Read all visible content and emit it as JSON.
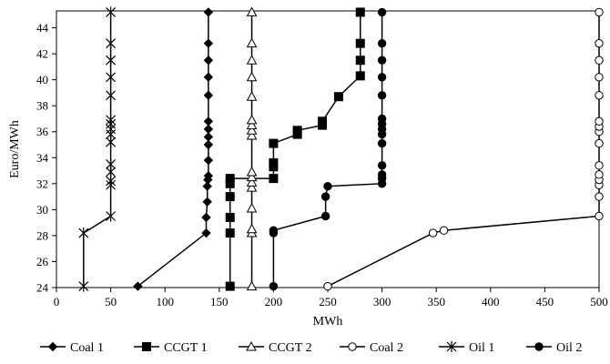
{
  "chart_data": {
    "type": "line",
    "title": "",
    "xlabel": "MWh",
    "ylabel": "Euro/MWh",
    "xlim": [
      0,
      500
    ],
    "ylim": [
      24,
      45.3
    ],
    "x_ticks": [
      0,
      50,
      100,
      150,
      200,
      250,
      300,
      350,
      400,
      450,
      500
    ],
    "y_ticks": [
      24,
      26,
      28,
      30,
      32,
      34,
      36,
      38,
      40,
      42,
      44
    ],
    "grid": false,
    "legend_position": "bottom",
    "series": [
      {
        "name": "Coal 1",
        "marker": "diamond",
        "points": [
          [
            75,
            24.1
          ],
          [
            138,
            28.2
          ],
          [
            138,
            29.4
          ],
          [
            139,
            30.6
          ],
          [
            139,
            31.8
          ],
          [
            139.5,
            32.3
          ],
          [
            140,
            32.6
          ],
          [
            140,
            33.8
          ],
          [
            140,
            35.0
          ],
          [
            140,
            35.6
          ],
          [
            140,
            36.2
          ],
          [
            140,
            36.8
          ],
          [
            140,
            38.8
          ],
          [
            140,
            40.2
          ],
          [
            140,
            41.5
          ],
          [
            140,
            42.8
          ],
          [
            140,
            45.2
          ]
        ]
      },
      {
        "name": "CCGT 1",
        "marker": "square",
        "points": [
          [
            160,
            24.1
          ],
          [
            160,
            28.2
          ],
          [
            160,
            29.4
          ],
          [
            160,
            31.0
          ],
          [
            160,
            32.0
          ],
          [
            160,
            32.4
          ],
          [
            200,
            32.4
          ],
          [
            200,
            33.3
          ],
          [
            200,
            33.6
          ],
          [
            200,
            35.1
          ],
          [
            222,
            35.8
          ],
          [
            222,
            36.1
          ],
          [
            245,
            36.5
          ],
          [
            245,
            36.8
          ],
          [
            260,
            38.7
          ],
          [
            280,
            40.3
          ],
          [
            280,
            41.5
          ],
          [
            280,
            42.8
          ],
          [
            280,
            45.2
          ]
        ]
      },
      {
        "name": "CCGT 2",
        "marker": "triangle",
        "points": [
          [
            180,
            24.1
          ],
          [
            180,
            28.2
          ],
          [
            180,
            28.5
          ],
          [
            180,
            30.1
          ],
          [
            180,
            31.7
          ],
          [
            180,
            32.1
          ],
          [
            180,
            32.5
          ],
          [
            180,
            32.9
          ],
          [
            180,
            35.7
          ],
          [
            180,
            36.1
          ],
          [
            180,
            36.5
          ],
          [
            180,
            36.9
          ],
          [
            180,
            38.7
          ],
          [
            180,
            40.2
          ],
          [
            180,
            41.5
          ],
          [
            180,
            42.8
          ],
          [
            180,
            45.2
          ]
        ]
      },
      {
        "name": "Coal 2",
        "marker": "circle-open",
        "points": [
          [
            250,
            24.1
          ],
          [
            347,
            28.2
          ],
          [
            357,
            28.4
          ],
          [
            500,
            29.5
          ],
          [
            500,
            31.0
          ],
          [
            500,
            31.9
          ],
          [
            500,
            32.3
          ],
          [
            500,
            32.7
          ],
          [
            500,
            33.4
          ],
          [
            500,
            35.1
          ],
          [
            500,
            36.0
          ],
          [
            500,
            36.4
          ],
          [
            500,
            36.8
          ],
          [
            500,
            38.8
          ],
          [
            500,
            40.2
          ],
          [
            500,
            41.5
          ],
          [
            500,
            42.8
          ],
          [
            500,
            45.2
          ]
        ]
      },
      {
        "name": "Oil 1",
        "marker": "star",
        "points": [
          [
            25,
            24.1
          ],
          [
            25,
            28.2
          ],
          [
            50,
            29.5
          ],
          [
            50,
            31.9
          ],
          [
            50,
            32.2
          ],
          [
            50,
            32.9
          ],
          [
            50,
            33.5
          ],
          [
            50,
            35.2
          ],
          [
            50,
            35.8
          ],
          [
            50,
            36.2
          ],
          [
            50,
            36.6
          ],
          [
            50,
            36.9
          ],
          [
            50,
            38.8
          ],
          [
            50,
            40.2
          ],
          [
            50,
            41.5
          ],
          [
            50,
            42.8
          ],
          [
            50,
            45.2
          ]
        ]
      },
      {
        "name": "Oil 2",
        "marker": "circle-filled",
        "points": [
          [
            200,
            24.1
          ],
          [
            200,
            28.2
          ],
          [
            200,
            28.4
          ],
          [
            248,
            29.5
          ],
          [
            248,
            31.0
          ],
          [
            250,
            31.8
          ],
          [
            300,
            32.0
          ],
          [
            300,
            32.4
          ],
          [
            300,
            32.7
          ],
          [
            300,
            33.4
          ],
          [
            300,
            35.1
          ],
          [
            300,
            35.8
          ],
          [
            300,
            36.2
          ],
          [
            300,
            36.6
          ],
          [
            300,
            37.0
          ],
          [
            300,
            38.8
          ],
          [
            300,
            40.2
          ],
          [
            300,
            41.5
          ],
          [
            300,
            42.8
          ],
          [
            300,
            45.2
          ]
        ]
      }
    ]
  }
}
